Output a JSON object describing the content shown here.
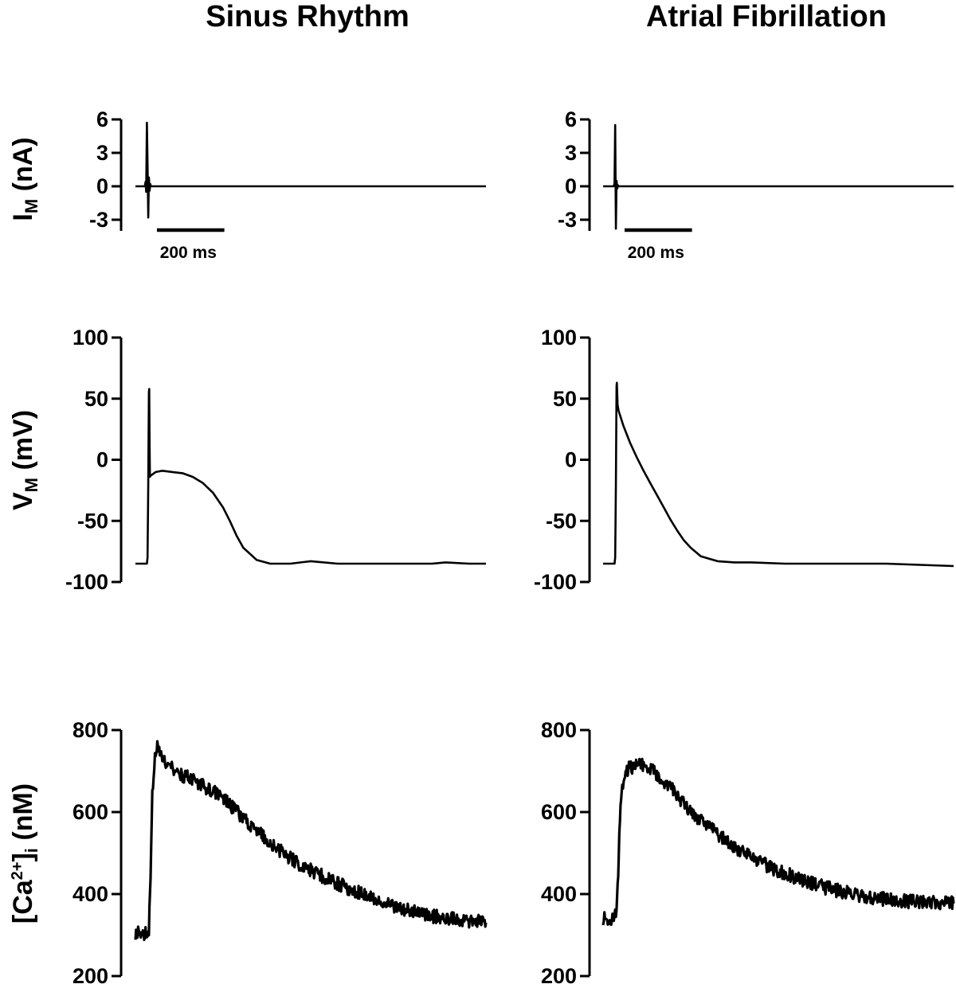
{
  "figure": {
    "columns": [
      {
        "id": "sr",
        "title": "Sinus Rhythm"
      },
      {
        "id": "af",
        "title": "Atrial Fibrillation"
      }
    ],
    "scale_bar": {
      "label": "200 ms",
      "duration_ms": 200
    }
  },
  "chart_data": [
    {
      "type": "line",
      "panel": "current",
      "condition": "Sinus Rhythm",
      "ylabel": {
        "main": "I",
        "sub": "M",
        "tail": " (nA)"
      },
      "xlim_ms": [
        -40,
        1000
      ],
      "ylim": [
        -4,
        6
      ],
      "yticks": [
        6,
        3,
        0,
        -3
      ],
      "x": [
        -40,
        -12,
        -10,
        -8,
        -6,
        -4,
        -2,
        0,
        2,
        4,
        6,
        8,
        10,
        1000
      ],
      "y": [
        0,
        0,
        0.4,
        -0.5,
        5.7,
        2.0,
        -2.8,
        0.8,
        -0.4,
        0.2,
        0,
        0,
        0,
        0
      ]
    },
    {
      "type": "line",
      "panel": "voltage",
      "condition": "Sinus Rhythm",
      "ylabel": {
        "main": "V",
        "sub": "M",
        "tail": " (mV)"
      },
      "xlim_ms": [
        -40,
        1000
      ],
      "ylim": [
        -100,
        100
      ],
      "yticks": [
        100,
        50,
        0,
        -50,
        -100
      ],
      "x": [
        -40,
        -6,
        -4,
        -2,
        0,
        1,
        2,
        3,
        5,
        10,
        20,
        40,
        70,
        100,
        130,
        160,
        190,
        220,
        240,
        260,
        280,
        320,
        360,
        420,
        480,
        560,
        660,
        760,
        840,
        880,
        950,
        1000
      ],
      "y": [
        -85,
        -85,
        -80,
        -20,
        55,
        58,
        10,
        -14,
        -13,
        -12,
        -10,
        -9,
        -10,
        -11,
        -14,
        -19,
        -27,
        -39,
        -50,
        -62,
        -72,
        -82,
        -85,
        -85,
        -83,
        -85,
        -85,
        -85,
        -85,
        -84,
        -85,
        -85
      ]
    },
    {
      "type": "line",
      "panel": "calcium",
      "condition": "Sinus Rhythm",
      "ylabel": {
        "main": "[Ca",
        "sup": "2+",
        "mid": "]",
        "sub": "i",
        "tail": " (nM)"
      },
      "xlim_ms": [
        -40,
        1000
      ],
      "ylim": [
        200,
        800
      ],
      "yticks": [
        800,
        600,
        400,
        200
      ],
      "x": [
        -40,
        -10,
        0,
        5,
        10,
        18,
        25,
        40,
        60,
        100,
        150,
        200,
        250,
        300,
        350,
        400,
        450,
        500,
        550,
        600,
        650,
        700,
        750,
        800,
        850,
        900,
        950,
        1000
      ],
      "y": [
        305,
        305,
        310,
        450,
        640,
        740,
        760,
        725,
        710,
        690,
        670,
        645,
        610,
        570,
        530,
        500,
        470,
        450,
        430,
        410,
        395,
        380,
        365,
        355,
        345,
        340,
        335,
        330
      ]
    },
    {
      "type": "line",
      "panel": "current",
      "condition": "Atrial Fibrillation",
      "ylabel": {
        "main": "I",
        "sub": "M",
        "tail": " (nA)"
      },
      "xlim_ms": [
        -40,
        1000
      ],
      "ylim": [
        -4,
        6
      ],
      "yticks": [
        6,
        3,
        0,
        -3
      ],
      "x": [
        -40,
        -8,
        -6,
        -4,
        -2,
        0,
        2,
        4,
        6,
        1000
      ],
      "y": [
        0,
        0,
        0.3,
        5.5,
        -3.8,
        0.5,
        -0.2,
        0.1,
        0,
        0
      ]
    },
    {
      "type": "line",
      "panel": "voltage",
      "condition": "Atrial Fibrillation",
      "ylabel": {
        "main": "V",
        "sub": "M",
        "tail": " (mV)"
      },
      "xlim_ms": [
        -40,
        1000
      ],
      "ylim": [
        -100,
        100
      ],
      "yticks": [
        100,
        50,
        0,
        -50,
        -100
      ],
      "x": [
        -40,
        -6,
        -4,
        -2,
        0,
        1,
        3,
        6,
        12,
        20,
        40,
        60,
        80,
        100,
        120,
        140,
        160,
        180,
        200,
        220,
        250,
        300,
        350,
        400,
        500,
        600,
        700,
        800,
        900,
        1000
      ],
      "y": [
        -85,
        -85,
        -80,
        -20,
        60,
        63,
        45,
        40,
        35,
        28,
        14,
        2,
        -9,
        -19,
        -29,
        -39,
        -49,
        -58,
        -66,
        -72,
        -79,
        -83,
        -84,
        -84,
        -85,
        -85,
        -85,
        -85,
        -86,
        -87
      ]
    },
    {
      "type": "line",
      "panel": "calcium",
      "condition": "Atrial Fibrillation",
      "ylabel": {
        "main": "[Ca",
        "sup": "2+",
        "mid": "]",
        "sub": "i",
        "tail": " (nM)"
      },
      "xlim_ms": [
        -40,
        1000
      ],
      "ylim": [
        200,
        800
      ],
      "yticks": [
        800,
        600,
        400,
        200
      ],
      "x": [
        -40,
        -10,
        0,
        5,
        10,
        15,
        25,
        35,
        50,
        70,
        90,
        110,
        130,
        160,
        200,
        250,
        300,
        350,
        400,
        450,
        500,
        550,
        600,
        650,
        700,
        750,
        800,
        850,
        900,
        950,
        1000
      ],
      "y": [
        340,
        340,
        350,
        450,
        580,
        650,
        690,
        705,
        712,
        714,
        710,
        700,
        685,
        660,
        620,
        580,
        545,
        515,
        490,
        468,
        450,
        435,
        420,
        410,
        400,
        392,
        387,
        383,
        380,
        378,
        377
      ]
    }
  ]
}
